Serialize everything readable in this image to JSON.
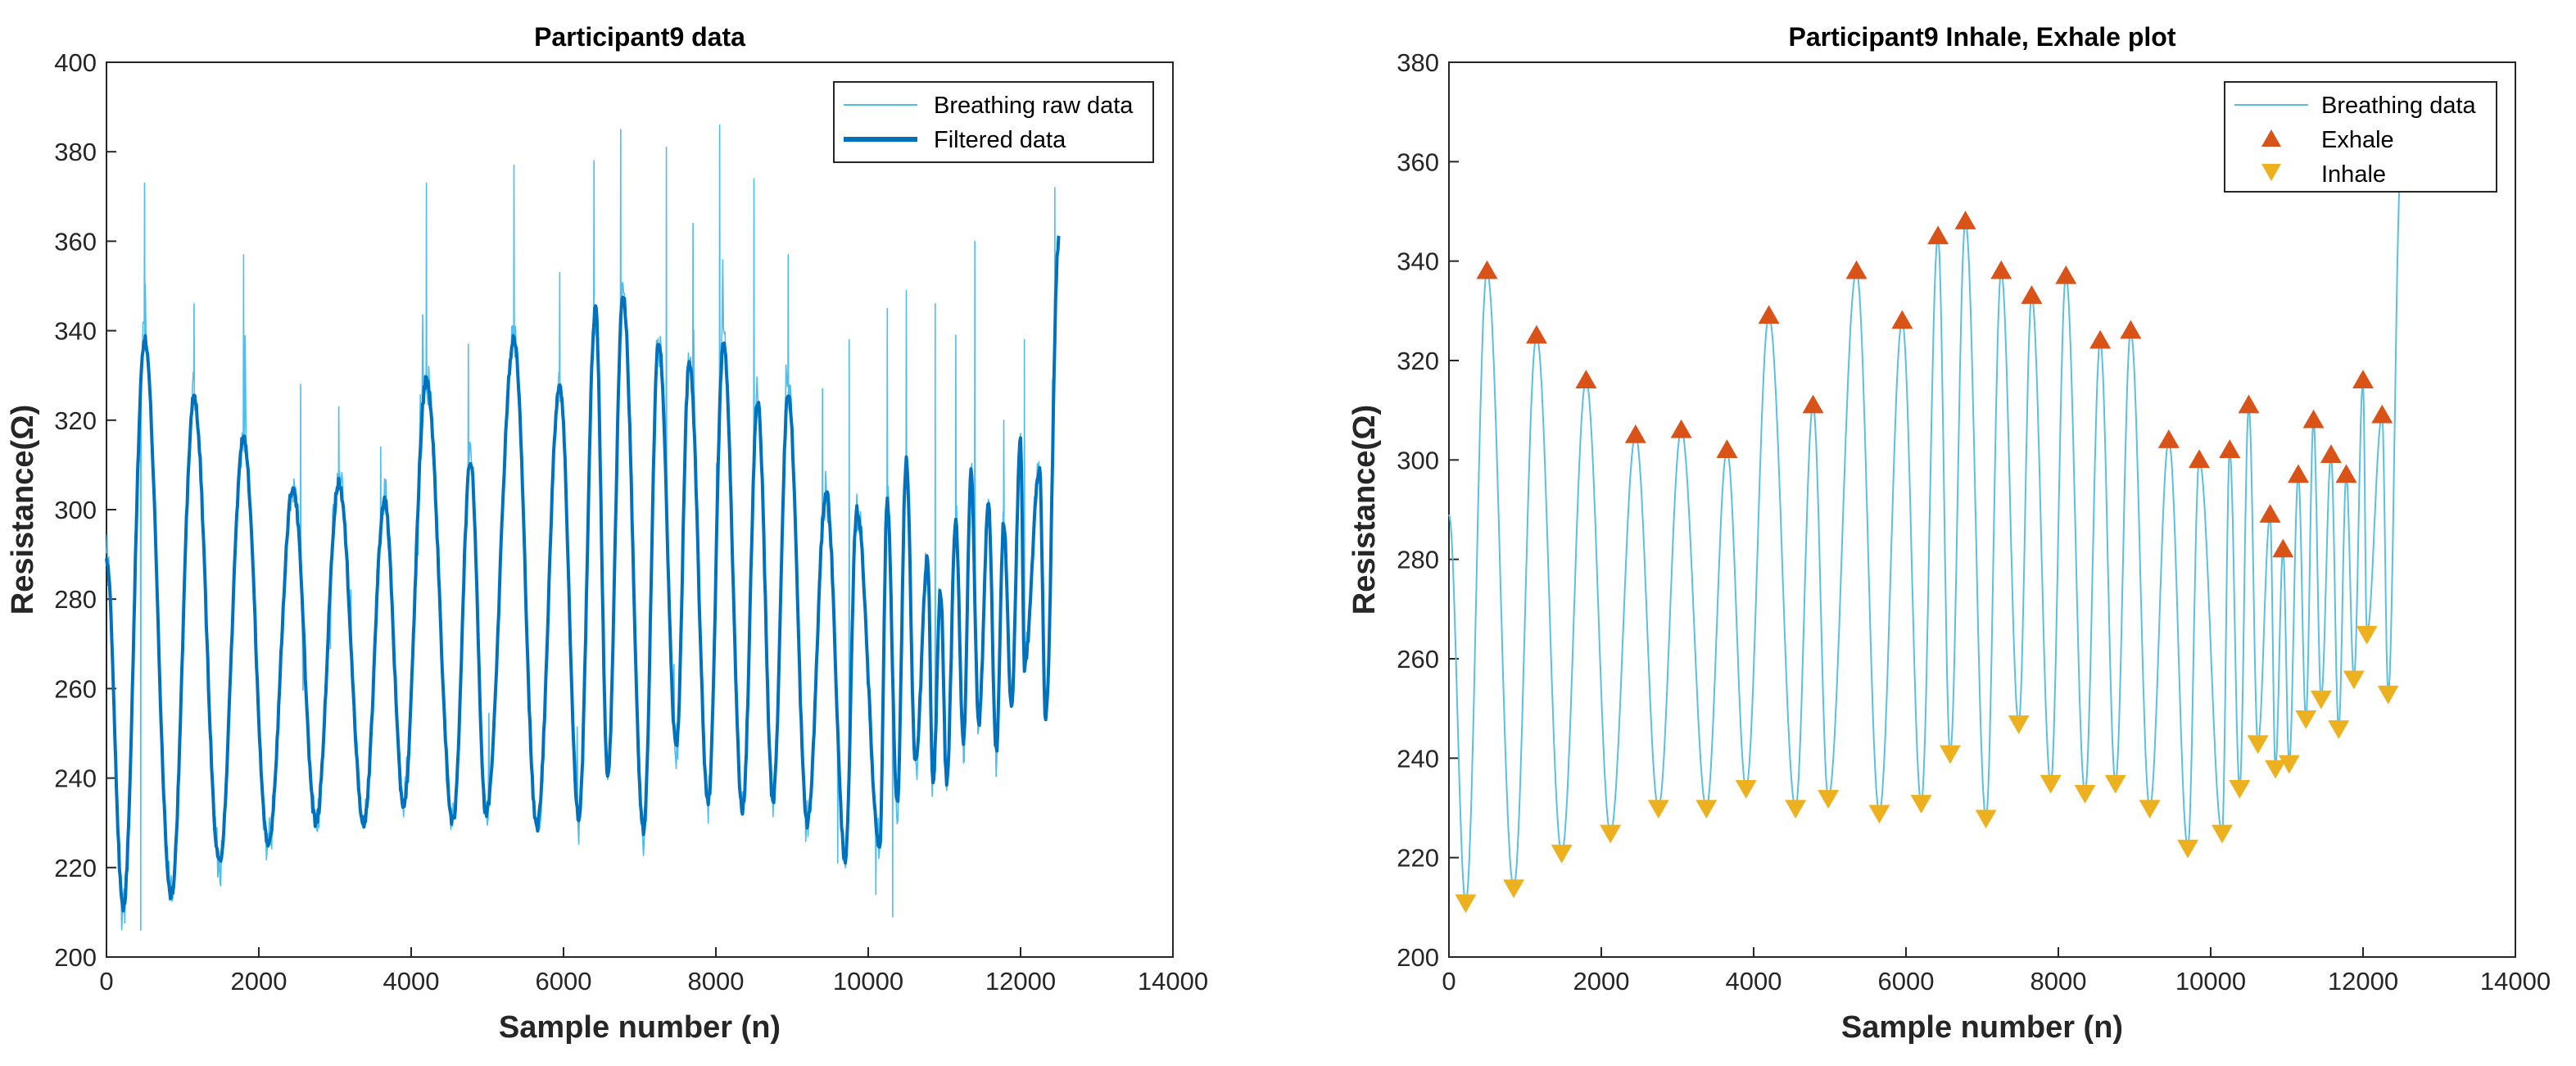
{
  "colors": {
    "raw": "#4DBEEE",
    "filtered": "#0072BD",
    "breathing": "#5BC0E0",
    "exhale": "#D95319",
    "inhale": "#EDB120",
    "axis": "#262626",
    "grid_box": "#262626"
  },
  "chart_data": [
    {
      "type": "line",
      "title": "Participant9 data",
      "xlabel": "Sample number (n)",
      "ylabel": "Resistance(Ω)",
      "xlim": [
        0,
        14000
      ],
      "ylim": [
        200,
        400
      ],
      "xticks": [
        0,
        2000,
        4000,
        6000,
        8000,
        10000,
        12000,
        14000
      ],
      "yticks": [
        200,
        220,
        240,
        260,
        280,
        300,
        320,
        340,
        360,
        380,
        400
      ],
      "legend": [
        "Breathing raw data",
        "Filtered data"
      ],
      "legend_position": "top-right",
      "series": [
        {
          "name": "Filtered data",
          "peaks": [
            [
              0,
              289
            ],
            [
              500,
              338
            ],
            [
              1150,
              325
            ],
            [
              1800,
              316
            ],
            [
              2450,
              305
            ],
            [
              3050,
              306
            ],
            [
              3650,
              302
            ],
            [
              4200,
              329
            ],
            [
              4780,
              311
            ],
            [
              5350,
              338
            ],
            [
              5950,
              328
            ],
            [
              6420,
              345
            ],
            [
              6780,
              348
            ],
            [
              7250,
              338
            ],
            [
              7650,
              333
            ],
            [
              8100,
              337
            ],
            [
              8550,
              324
            ],
            [
              8950,
              326
            ],
            [
              9450,
              304
            ],
            [
              9850,
              300
            ],
            [
              10250,
              302
            ],
            [
              10500,
              311
            ],
            [
              10780,
              289
            ],
            [
              10950,
              282
            ],
            [
              11150,
              297
            ],
            [
              11350,
              308
            ],
            [
              11580,
              301
            ],
            [
              11780,
              297
            ],
            [
              12000,
              316
            ],
            [
              12250,
              309
            ],
            [
              12500,
              360
            ]
          ],
          "troughs": [
            [
              220,
              211
            ],
            [
              850,
              214
            ],
            [
              1480,
              221
            ],
            [
              2120,
              225
            ],
            [
              2750,
              230
            ],
            [
              3380,
              230
            ],
            [
              3900,
              234
            ],
            [
              4550,
              230
            ],
            [
              4980,
              232
            ],
            [
              5650,
              229
            ],
            [
              6200,
              231
            ],
            [
              6580,
              241
            ],
            [
              7050,
              228
            ],
            [
              7480,
              247
            ],
            [
              7900,
              235
            ],
            [
              8350,
              233
            ],
            [
              8750,
              235
            ],
            [
              9200,
              230
            ],
            [
              9700,
              222
            ],
            [
              10150,
              225
            ],
            [
              10380,
              234
            ],
            [
              10620,
              243
            ],
            [
              10850,
              238
            ],
            [
              11030,
              239
            ],
            [
              11250,
              248
            ],
            [
              11450,
              252
            ],
            [
              11680,
              246
            ],
            [
              11880,
              256
            ],
            [
              12050,
              265
            ],
            [
              12330,
              253
            ]
          ]
        },
        {
          "name": "Breathing raw data",
          "noise_amplitude": 9,
          "spikes": [
            [
              500,
              373
            ],
            [
              1150,
              346
            ],
            [
              1800,
              357
            ],
            [
              2550,
              328
            ],
            [
              3050,
              323
            ],
            [
              3600,
              314
            ],
            [
              4200,
              373
            ],
            [
              4750,
              337
            ],
            [
              5350,
              377
            ],
            [
              5950,
              353
            ],
            [
              6400,
              378
            ],
            [
              6750,
              385
            ],
            [
              7350,
              381
            ],
            [
              7700,
              364
            ],
            [
              8050,
              386
            ],
            [
              8500,
              374
            ],
            [
              8950,
              357
            ],
            [
              9400,
              327
            ],
            [
              9750,
              338
            ],
            [
              10250,
              345
            ],
            [
              10500,
              349
            ],
            [
              10880,
              346
            ],
            [
              11150,
              339
            ],
            [
              11400,
              360
            ],
            [
              11780,
              320
            ],
            [
              12050,
              338
            ],
            [
              12450,
              372
            ],
            [
              10320,
              209
            ],
            [
              10100,
              214
            ],
            [
              9600,
              221
            ],
            [
              450,
              206
            ]
          ]
        }
      ]
    },
    {
      "type": "line",
      "title": "Participant9 Inhale, Exhale plot",
      "xlabel": "Sample number (n)",
      "ylabel": "Resistance(Ω)",
      "xlim": [
        0,
        14000
      ],
      "ylim": [
        200,
        380
      ],
      "xticks": [
        0,
        2000,
        4000,
        6000,
        8000,
        10000,
        12000,
        14000
      ],
      "yticks": [
        200,
        220,
        240,
        260,
        280,
        300,
        320,
        340,
        360,
        380
      ],
      "legend": [
        "Breathing data",
        "Exhale",
        "Inhale"
      ],
      "legend_position": "top-right",
      "series": [
        {
          "name": "Breathing data",
          "derived_from": "filtered peaks and troughs of panel 1",
          "end_point": [
            12500,
            360
          ]
        },
        {
          "name": "Exhale",
          "marker": "triangle-up",
          "points": [
            [
              500,
              338
            ],
            [
              1150,
              325
            ],
            [
              1800,
              316
            ],
            [
              2450,
              305
            ],
            [
              3050,
              306
            ],
            [
              3650,
              302
            ],
            [
              4200,
              329
            ],
            [
              4780,
              311
            ],
            [
              5350,
              338
            ],
            [
              5950,
              328
            ],
            [
              6420,
              345
            ],
            [
              6780,
              348
            ],
            [
              7250,
              338
            ],
            [
              7650,
              333
            ],
            [
              8100,
              337
            ],
            [
              8550,
              324
            ],
            [
              8950,
              326
            ],
            [
              9450,
              304
            ],
            [
              9850,
              300
            ],
            [
              10250,
              302
            ],
            [
              10500,
              311
            ],
            [
              10780,
              289
            ],
            [
              10950,
              282
            ],
            [
              11150,
              297
            ],
            [
              11350,
              308
            ],
            [
              11580,
              301
            ],
            [
              11780,
              297
            ],
            [
              12000,
              316
            ],
            [
              12250,
              309
            ]
          ]
        },
        {
          "name": "Inhale",
          "marker": "triangle-down",
          "points": [
            [
              220,
              211
            ],
            [
              850,
              214
            ],
            [
              1480,
              221
            ],
            [
              2120,
              225
            ],
            [
              2750,
              230
            ],
            [
              3380,
              230
            ],
            [
              3900,
              234
            ],
            [
              4550,
              230
            ],
            [
              4980,
              232
            ],
            [
              5650,
              229
            ],
            [
              6200,
              231
            ],
            [
              6580,
              241
            ],
            [
              7050,
              228
            ],
            [
              7480,
              247
            ],
            [
              7900,
              235
            ],
            [
              8350,
              233
            ],
            [
              8750,
              235
            ],
            [
              9200,
              230
            ],
            [
              9700,
              222
            ],
            [
              10150,
              225
            ],
            [
              10380,
              234
            ],
            [
              10620,
              243
            ],
            [
              10850,
              238
            ],
            [
              11030,
              239
            ],
            [
              11250,
              248
            ],
            [
              11450,
              252
            ],
            [
              11680,
              246
            ],
            [
              11880,
              256
            ],
            [
              12050,
              265
            ],
            [
              12330,
              253
            ]
          ]
        }
      ]
    }
  ]
}
